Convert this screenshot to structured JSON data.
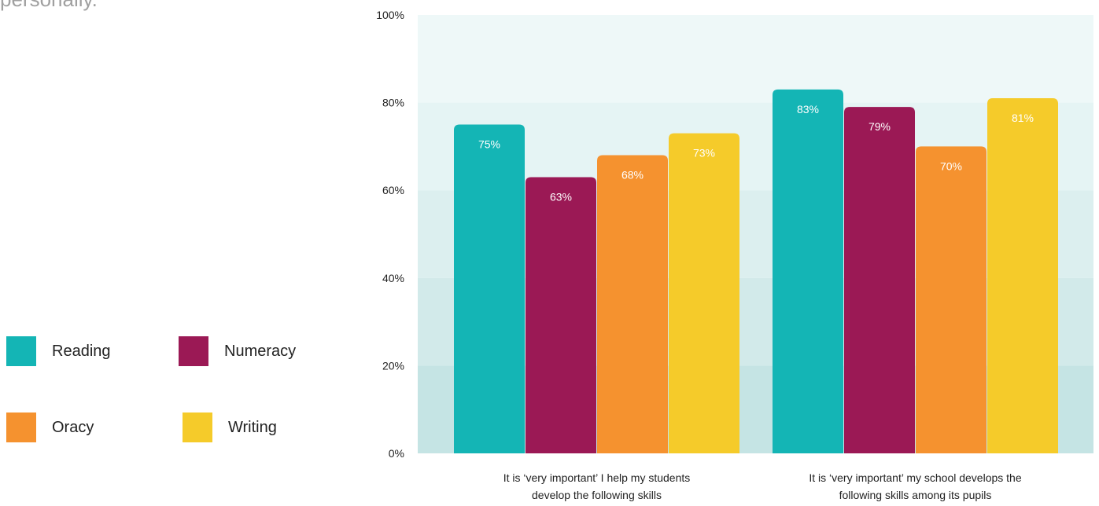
{
  "header": {
    "cut_text": "personally."
  },
  "legend": {
    "items": [
      {
        "label": "Reading",
        "color": "#14b5b5"
      },
      {
        "label": "Numeracy",
        "color": "#9b1955"
      },
      {
        "label": "Oracy",
        "color": "#f5922f"
      },
      {
        "label": "Writing",
        "color": "#f5cb2a"
      }
    ]
  },
  "chart_data": {
    "type": "bar",
    "title": "",
    "xlabel": "",
    "ylabel": "",
    "ylim": [
      0,
      100
    ],
    "y_ticks": [
      "0%",
      "20%",
      "40%",
      "60%",
      "80%",
      "100%"
    ],
    "categories": [
      [
        "It is ‘very important’ I help my students",
        "develop the following skills"
      ],
      [
        "It is ‘very important’ my school develops the",
        "following skills among its pupils"
      ]
    ],
    "series": [
      {
        "name": "Reading",
        "color": "#14b5b5",
        "values": [
          75,
          83
        ],
        "labels": [
          "75%",
          "83%"
        ]
      },
      {
        "name": "Numeracy",
        "color": "#9b1955",
        "values": [
          63,
          79
        ],
        "labels": [
          "63%",
          "79%"
        ]
      },
      {
        "name": "Oracy",
        "color": "#f5922f",
        "values": [
          68,
          70
        ],
        "labels": [
          "68%",
          "70%"
        ]
      },
      {
        "name": "Writing",
        "color": "#f5cb2a",
        "values": [
          73,
          81
        ],
        "labels": [
          "73%",
          "81%"
        ]
      }
    ],
    "grid": true,
    "legend_position": "left"
  }
}
